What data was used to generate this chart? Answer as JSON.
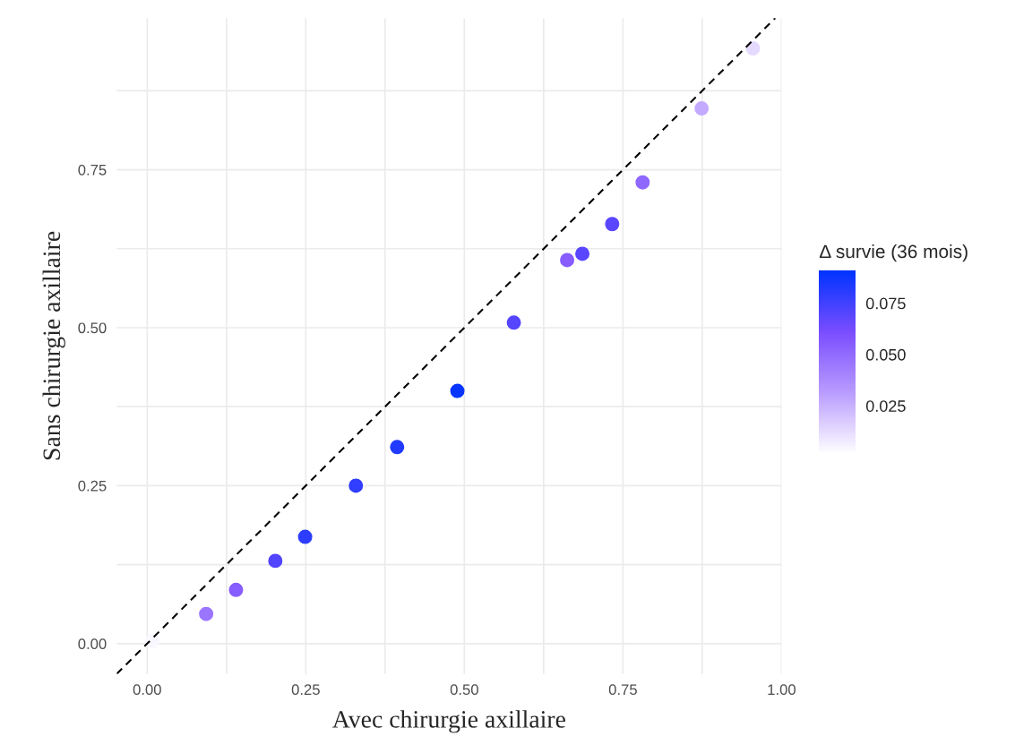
{
  "chart_data": {
    "type": "scatter",
    "xlabel": "Avec chirurgie axillaire",
    "ylabel": "Sans chirurgie axillaire",
    "clabel": "Δ survie (36 mois)",
    "series": [
      {
        "marker": "circle",
        "colors": [
          "#f9f7ff",
          "#9a75ff",
          "#875dff",
          "#5244ff",
          "#2d3dff",
          "#313dff",
          "#213aff",
          "#0835ff",
          "#5645ff",
          "#875dff",
          "#5a46ff",
          "#5a46ff",
          "#8f68ff",
          "#c3aaff",
          "#e4d9ff"
        ],
        "x": [
          0.008,
          0.093,
          0.14,
          0.202,
          0.249,
          0.329,
          0.394,
          0.489,
          0.578,
          0.662,
          0.686,
          0.733,
          0.781,
          0.874,
          0.955
        ],
        "values": [
          0.004,
          0.047,
          0.085,
          0.131,
          0.169,
          0.25,
          0.311,
          0.4,
          0.508,
          0.607,
          0.617,
          0.664,
          0.73,
          0.847,
          0.942
        ],
        "cvalues": [
          0.004,
          0.046,
          0.055,
          0.071,
          0.08,
          0.079,
          0.083,
          0.089,
          0.07,
          0.055,
          0.069,
          0.069,
          0.051,
          0.027,
          0.013
        ]
      },
      {
        "type": "line",
        "color": "#000000",
        "line_style": "dashed",
        "x": [
          -0.048,
          0.99
        ],
        "values": [
          -0.048,
          0.99
        ]
      }
    ],
    "xlim": [
      -0.048,
      1.0
    ],
    "ylim": [
      -0.048,
      0.99
    ],
    "xticks": [
      {
        "value": 0,
        "label": "0.00"
      },
      {
        "value": 0.125,
        "label": null
      },
      {
        "value": 0.25,
        "label": "0.25"
      },
      {
        "value": 0.375,
        "label": null
      },
      {
        "value": 0.5,
        "label": "0.50"
      },
      {
        "value": 0.625,
        "label": null
      },
      {
        "value": 0.75,
        "label": "0.75"
      },
      {
        "value": 0.875,
        "label": null
      },
      {
        "value": 1,
        "label": "1.00"
      }
    ],
    "yticks": [
      {
        "value": 0,
        "label": "0.00"
      },
      {
        "value": 0.125,
        "label": null
      },
      {
        "value": 0.25,
        "label": "0.25"
      },
      {
        "value": 0.375,
        "label": null
      },
      {
        "value": 0.5,
        "label": "0.50"
      },
      {
        "value": 0.625,
        "label": null
      },
      {
        "value": 0.75,
        "label": "0.75"
      },
      {
        "value": 0.875,
        "label": null
      }
    ],
    "clim": [
      0.0015,
      0.091
    ],
    "cticks": [
      {
        "value": 0.025,
        "label": "0.025"
      },
      {
        "value": 0.05,
        "label": "0.050"
      },
      {
        "value": 0.075,
        "label": "0.075"
      }
    ],
    "grid": true
  }
}
